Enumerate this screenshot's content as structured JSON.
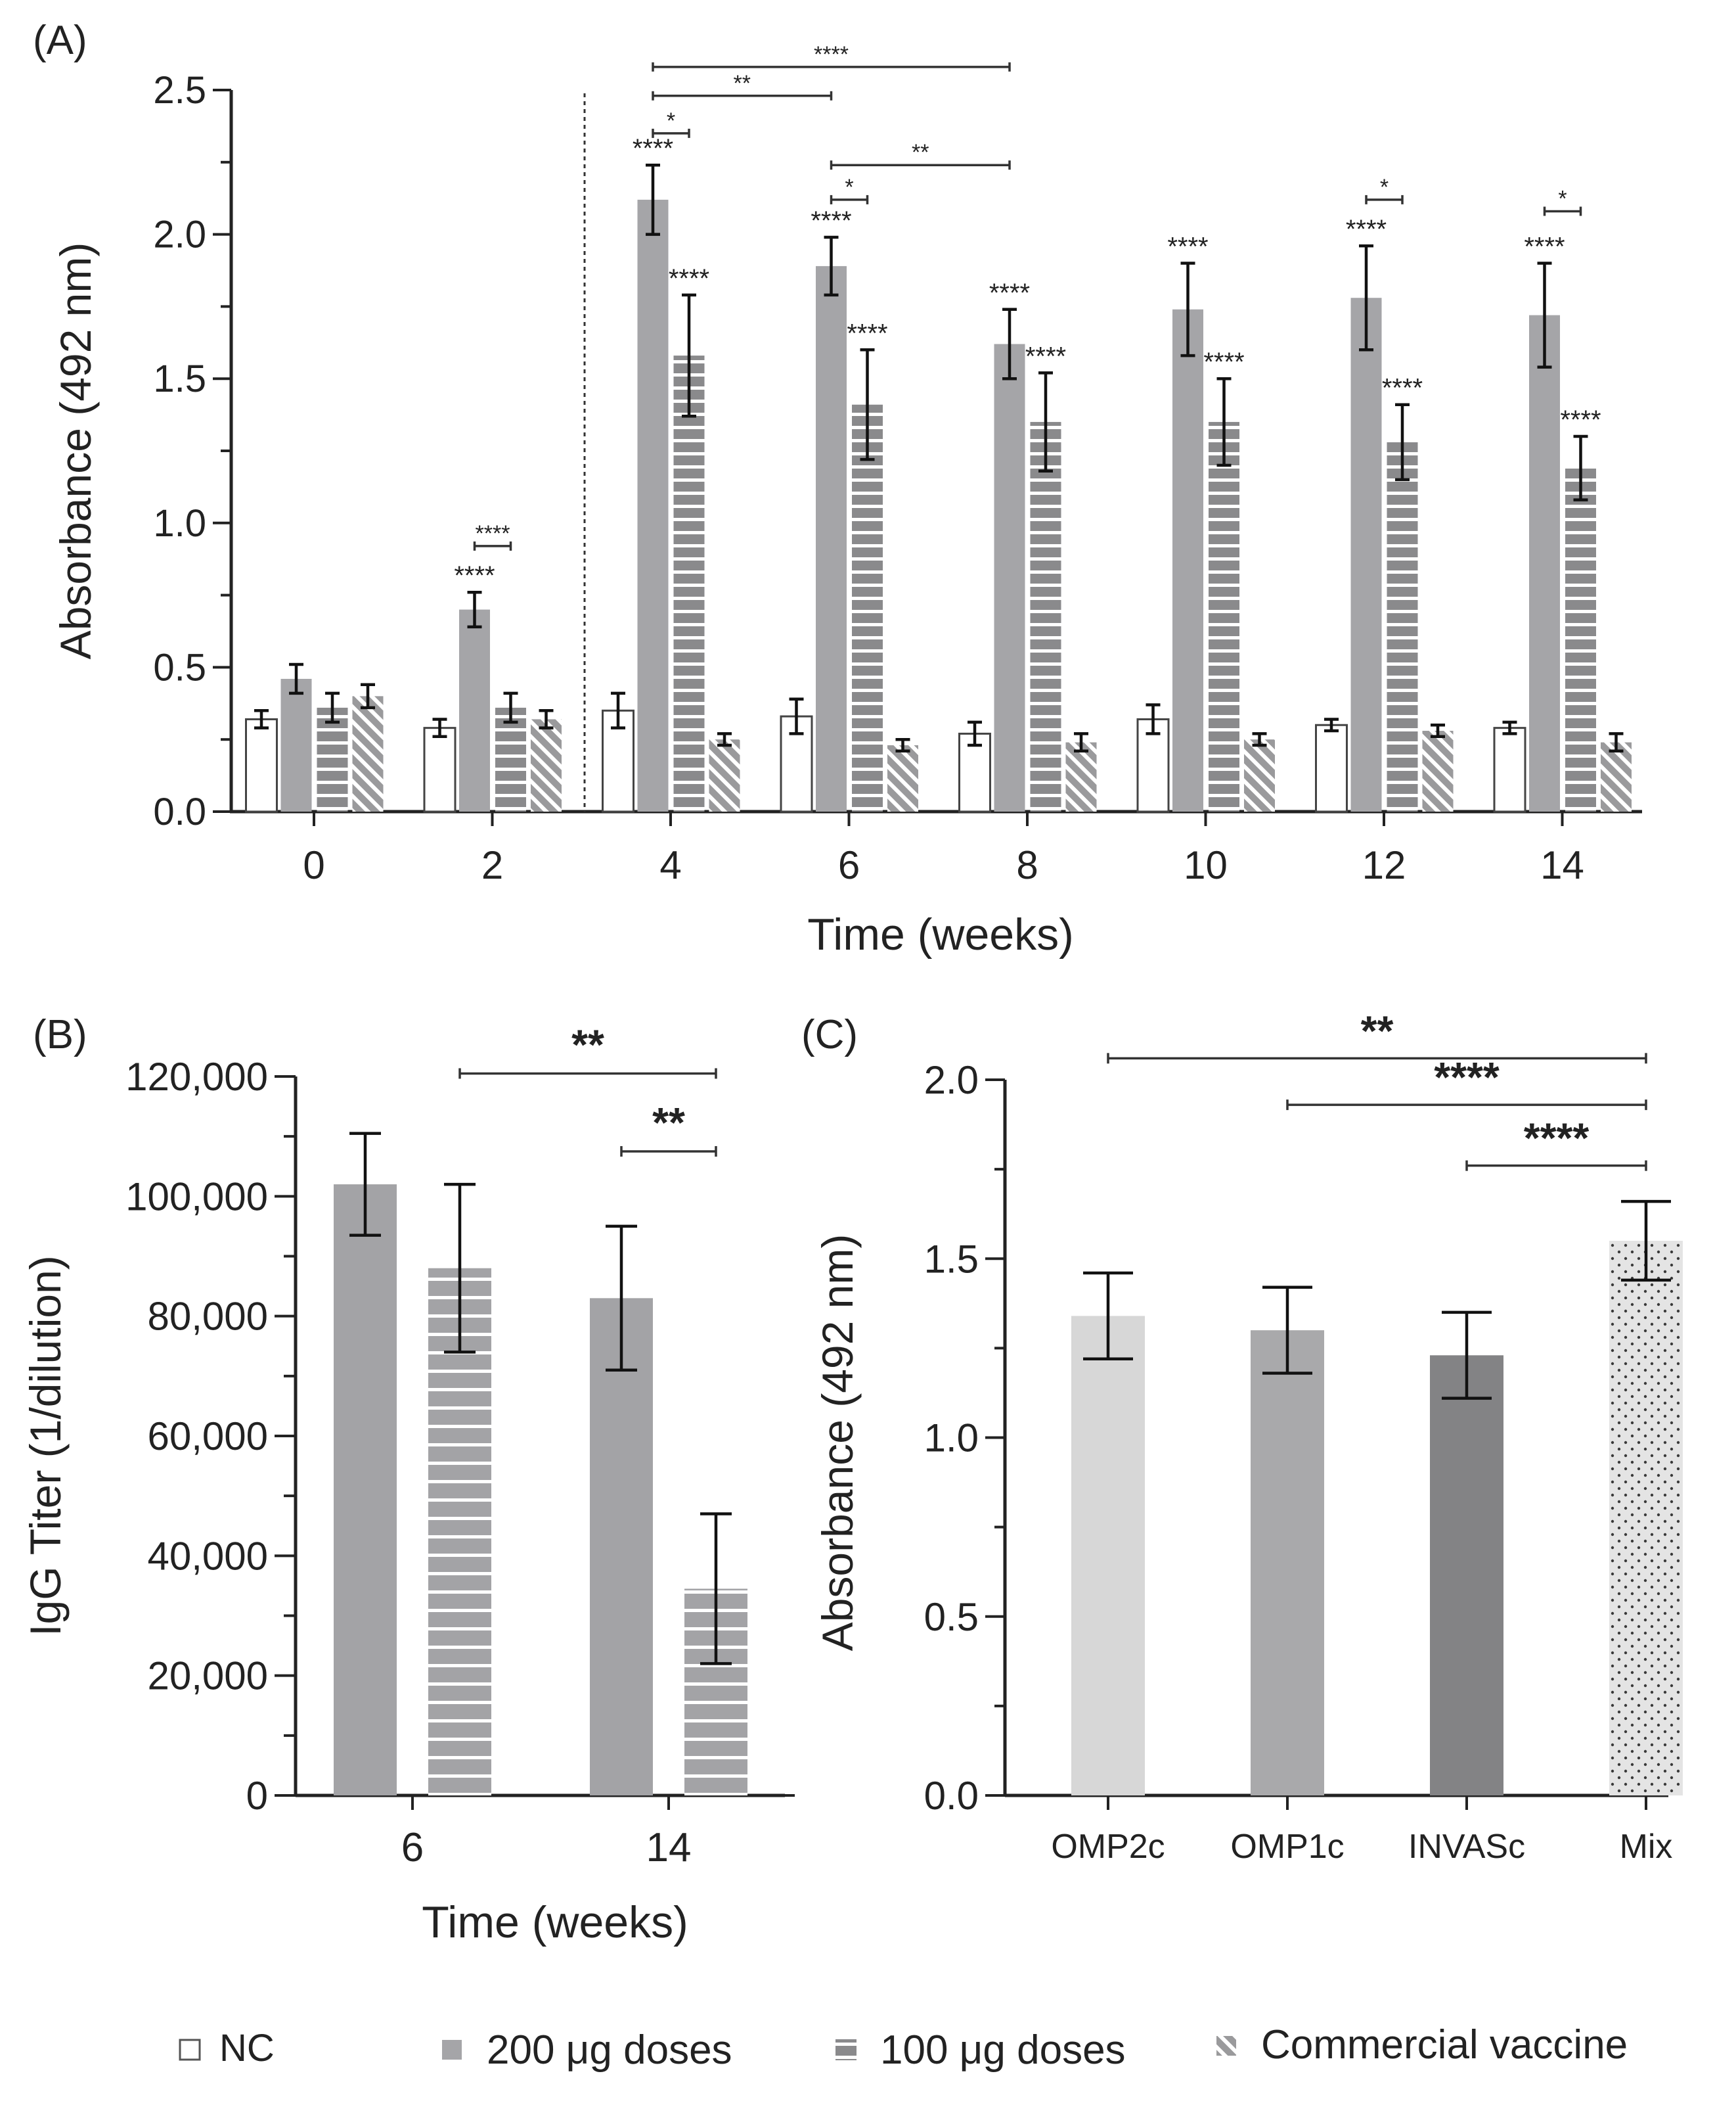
{
  "chart_data": [
    {
      "panel": "(A)",
      "type": "bar",
      "xlabel": "Time (weeks)",
      "ylabel": "Absorbance (492 nm)",
      "ylim": [
        0,
        2.5
      ],
      "yticks": [
        "0.0",
        "0.5",
        "1.0",
        "1.5",
        "2.0",
        "2.5"
      ],
      "categories": [
        "0",
        "2",
        "4",
        "6",
        "8",
        "10",
        "12",
        "14"
      ],
      "series": [
        {
          "name": "NC",
          "values": [
            0.32,
            0.29,
            0.35,
            0.33,
            0.27,
            0.32,
            0.3,
            0.29
          ],
          "errors": [
            0.03,
            0.03,
            0.06,
            0.06,
            0.04,
            0.05,
            0.02,
            0.02
          ]
        },
        {
          "name": "200 μg doses",
          "values": [
            0.46,
            0.7,
            2.12,
            1.89,
            1.62,
            1.74,
            1.78,
            1.72
          ],
          "errors": [
            0.05,
            0.06,
            0.12,
            0.1,
            0.12,
            0.16,
            0.18,
            0.18
          ]
        },
        {
          "name": "100 μg doses",
          "values": [
            0.36,
            0.36,
            1.58,
            1.41,
            1.35,
            1.35,
            1.28,
            1.19
          ],
          "errors": [
            0.05,
            0.05,
            0.21,
            0.19,
            0.17,
            0.15,
            0.13,
            0.11
          ]
        },
        {
          "name": "Commercial vaccine",
          "values": [
            0.4,
            0.32,
            0.25,
            0.23,
            0.24,
            0.25,
            0.28,
            0.24
          ],
          "errors": [
            0.04,
            0.03,
            0.02,
            0.02,
            0.03,
            0.02,
            0.02,
            0.03
          ]
        }
      ],
      "bar_stars": [
        {
          "category": "2",
          "series": 1,
          "label": "****"
        },
        {
          "category": "4",
          "series": 1,
          "label": "****"
        },
        {
          "category": "4",
          "series": 2,
          "label": "****"
        },
        {
          "category": "6",
          "series": 1,
          "label": "****"
        },
        {
          "category": "6",
          "series": 2,
          "label": "****"
        },
        {
          "category": "8",
          "series": 1,
          "label": "****"
        },
        {
          "category": "8",
          "series": 2,
          "label": "****"
        },
        {
          "category": "10",
          "series": 1,
          "label": "****"
        },
        {
          "category": "10",
          "series": 2,
          "label": "****"
        },
        {
          "category": "12",
          "series": 1,
          "label": "****"
        },
        {
          "category": "12",
          "series": 2,
          "label": "****"
        },
        {
          "category": "14",
          "series": 1,
          "label": "****"
        },
        {
          "category": "14",
          "series": 2,
          "label": "****"
        }
      ],
      "comparisons": [
        {
          "from_category": "2",
          "from_series": 1,
          "to_category": "2",
          "to_series": 2,
          "y": 0.92,
          "label": "****"
        },
        {
          "from_category": "4",
          "from_series": 1,
          "to_category": "4",
          "to_series": 2,
          "y": 2.35,
          "label": "*"
        },
        {
          "from_category": "4",
          "from_series": 1,
          "to_category": "6",
          "to_series": 1,
          "y": 2.48,
          "label": "**"
        },
        {
          "from_category": "4",
          "from_series": 1,
          "to_category": "8",
          "to_series": 1,
          "y": 2.58,
          "label": "****"
        },
        {
          "from_category": "6",
          "from_series": 1,
          "to_category": "6",
          "to_series": 2,
          "y": 2.12,
          "label": "*"
        },
        {
          "from_category": "6",
          "from_series": 1,
          "to_category": "8",
          "to_series": 1,
          "y": 2.24,
          "label": "**"
        },
        {
          "from_category": "12",
          "from_series": 1,
          "to_category": "12",
          "to_series": 2,
          "y": 2.12,
          "label": "*"
        },
        {
          "from_category": "14",
          "from_series": 1,
          "to_category": "14",
          "to_series": 2,
          "y": 2.08,
          "label": "*"
        }
      ]
    },
    {
      "panel": "(B)",
      "type": "bar",
      "xlabel": "Time (weeks)",
      "ylabel": "IgG Titer (1/dilution)",
      "ylim": [
        0,
        120000
      ],
      "yticks": [
        "0",
        "20,000",
        "40,000",
        "60,000",
        "80,000",
        "100,000",
        "120,000"
      ],
      "categories": [
        "6",
        "14"
      ],
      "series": [
        {
          "name": "200 μg doses",
          "values": [
            102000,
            83000
          ],
          "errors": [
            8500,
            12000
          ]
        },
        {
          "name": "100 μg doses",
          "values": [
            88000,
            34500
          ],
          "errors": [
            14000,
            12500
          ]
        }
      ],
      "comparisons": [
        {
          "from_category": "6",
          "from_series": 1,
          "to_category": "14",
          "to_series": 1,
          "y": 120500,
          "label": "**"
        },
        {
          "from_category": "14",
          "from_series": 0,
          "to_category": "14",
          "to_series": 1,
          "y": 107500,
          "label": "**"
        }
      ]
    },
    {
      "panel": "(C)",
      "type": "bar",
      "xlabel": "",
      "ylabel": "Absorbance (492 nm)",
      "ylim": [
        0,
        2.0
      ],
      "yticks": [
        "0.0",
        "0.5",
        "1.0",
        "1.5",
        "2.0"
      ],
      "categories": [
        "OMP2c",
        "OMP1c",
        "INVASc",
        "Mix"
      ],
      "values": [
        1.34,
        1.3,
        1.23,
        1.55
      ],
      "errors": [
        0.12,
        0.12,
        0.12,
        0.11
      ],
      "colors": [
        "#d7d7d7",
        "#a9a9ab",
        "#838385",
        "#e4e4e4"
      ],
      "comparisons": [
        {
          "from": "OMP2c",
          "to": "Mix",
          "y": 2.06,
          "label": "**"
        },
        {
          "from": "OMP1c",
          "to": "Mix",
          "y": 1.93,
          "label": "****"
        },
        {
          "from": "INVASc",
          "to": "Mix",
          "y": 1.76,
          "label": "****"
        }
      ]
    }
  ],
  "legend": [
    {
      "name": "NC",
      "pattern": "open"
    },
    {
      "name": "200 μg doses",
      "pattern": "solid"
    },
    {
      "name": "100 μg doses",
      "pattern": "horizontal-stripes"
    },
    {
      "name": "Commercial vaccine",
      "pattern": "diagonal-stripes"
    }
  ],
  "colors": {
    "nc": "#ffffff",
    "dose200": "#a5a5a8",
    "dose100": "#8a8a8c",
    "commercial": "#9a9a9c",
    "axis": "#222222"
  }
}
